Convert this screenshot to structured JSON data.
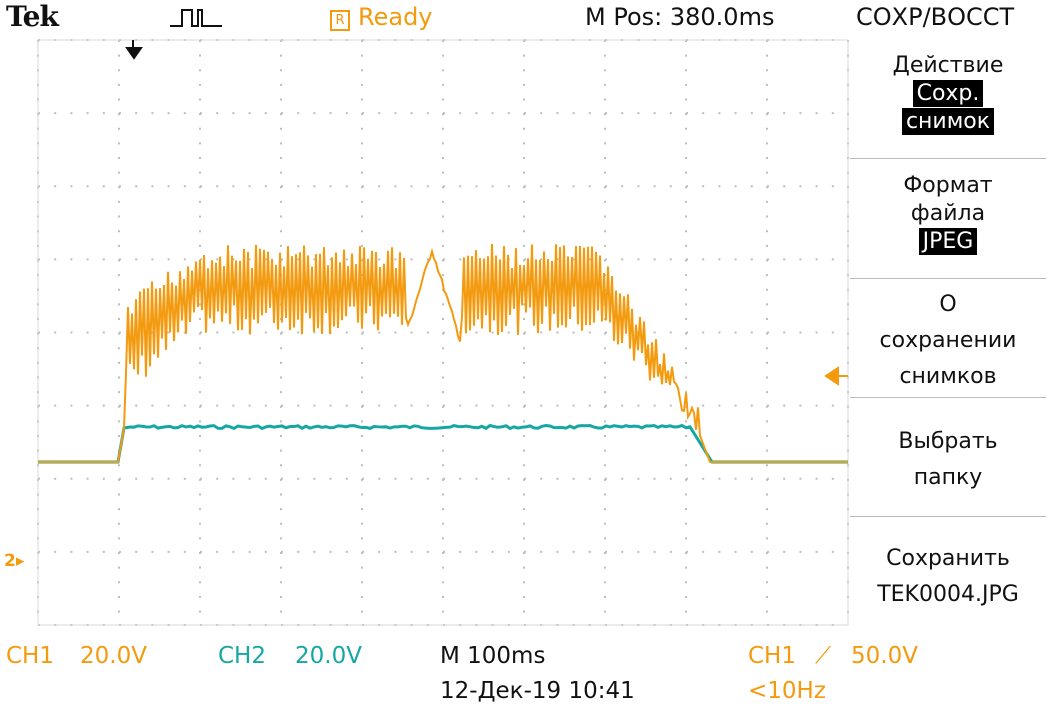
{
  "header": {
    "brand": "Tek",
    "trigger_status": "Ready",
    "trigger_status_icon": "R",
    "m_pos": "M Pos: 380.0ms",
    "menu_title": "СОХР/ВОССТ"
  },
  "menu": {
    "action_label": "Действие",
    "action_value_line1": "Сохр.",
    "action_value_line2": "снимок",
    "format_label_line1": "Формат",
    "format_label_line2": "файла",
    "format_value": "JPEG",
    "about_line1": "О",
    "about_line2": "сохранении",
    "about_line3": "снимков",
    "folder_line1": "Выбрать",
    "folder_line2": "папку",
    "save_line1": "Сохранить",
    "save_line2": "TEK0004.JPG"
  },
  "footer": {
    "ch1_label": "CH1",
    "ch1_scale": "20.0V",
    "ch2_label": "CH2",
    "ch2_scale": "20.0V",
    "timebase": "M 100ms",
    "date_time": "12-Дек-19 10:41",
    "trigger_source": "CH1",
    "trigger_slope": "⟋",
    "trigger_level": "50.0V",
    "trigger_freq": "<10Hz"
  },
  "markers": {
    "ch2_ground": "2▸"
  },
  "colors": {
    "ch1": "#f39a0f",
    "ch2": "#16a7a5",
    "grid": "#bdbdbd"
  }
}
